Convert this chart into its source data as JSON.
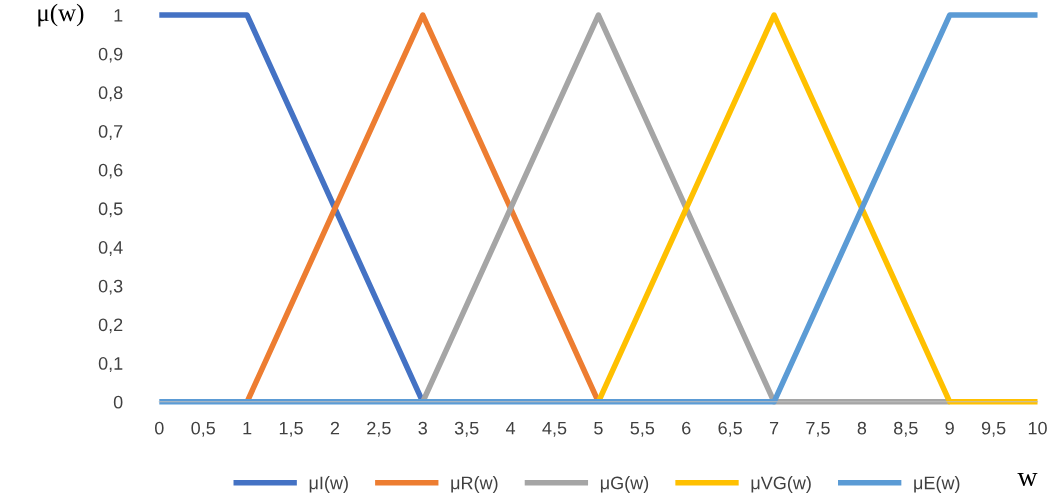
{
  "chart_data": {
    "type": "line",
    "xlabel": "w",
    "ylabel": "μ(w)",
    "categories": [
      "0",
      "0,5",
      "1",
      "1,5",
      "2",
      "2,5",
      "3",
      "3,5",
      "4",
      "4,5",
      "5",
      "5,5",
      "6",
      "6,5",
      "7",
      "7,5",
      "8",
      "8,5",
      "9",
      "9,5",
      "10"
    ],
    "series": [
      {
        "name": "μI(w)",
        "color": "#4472c4",
        "values": [
          1,
          1,
          1,
          0.75,
          0.5,
          0.25,
          0,
          null,
          null,
          null,
          null,
          null,
          null,
          null,
          null,
          null,
          null,
          null,
          null,
          null,
          null
        ]
      },
      {
        "name": "μR(w)",
        "color": "#ed7d31",
        "values": [
          null,
          null,
          0,
          0.25,
          0.5,
          0.75,
          1,
          0.75,
          0.5,
          0.25,
          0,
          null,
          null,
          null,
          null,
          null,
          null,
          null,
          null,
          null,
          null
        ]
      },
      {
        "name": "μG(w)",
        "color": "#a5a5a5",
        "values": [
          null,
          null,
          null,
          null,
          null,
          null,
          0,
          0.25,
          0.5,
          0.75,
          1,
          0.75,
          0.5,
          0.25,
          0,
          0,
          0,
          0,
          0,
          null,
          null
        ]
      },
      {
        "name": "μVG(w)",
        "color": "#ffc000",
        "values": [
          null,
          null,
          null,
          null,
          null,
          null,
          null,
          null,
          null,
          null,
          0,
          0.25,
          0.5,
          0.75,
          1,
          0.75,
          0.5,
          0.25,
          0,
          0,
          0
        ]
      },
      {
        "name": "μE(w)",
        "color": "#5b9bd5",
        "values": [
          0,
          0,
          0,
          0,
          0,
          0,
          0,
          0,
          0,
          0,
          0,
          0,
          0,
          0,
          0,
          0.25,
          0.5,
          0.75,
          1,
          1,
          1
        ]
      }
    ],
    "ylim": [
      0,
      1
    ],
    "yticks": [
      0,
      {
        "value": 0.1,
        "label": "0,1"
      },
      {
        "value": 0.2,
        "label": "0,2"
      },
      {
        "value": 0.3,
        "label": "0,3"
      },
      {
        "value": 0.4,
        "label": "0,4"
      },
      {
        "value": 0.5,
        "label": "0,5"
      },
      {
        "value": 0.6,
        "label": "0,6"
      },
      {
        "value": 0.7,
        "label": "0,7"
      },
      {
        "value": 0.8,
        "label": "0,8"
      },
      {
        "value": 0.9,
        "label": "0,9"
      },
      1
    ],
    "grid": false,
    "legend": "bottom",
    "marker": "none",
    "line_style": "solid"
  }
}
